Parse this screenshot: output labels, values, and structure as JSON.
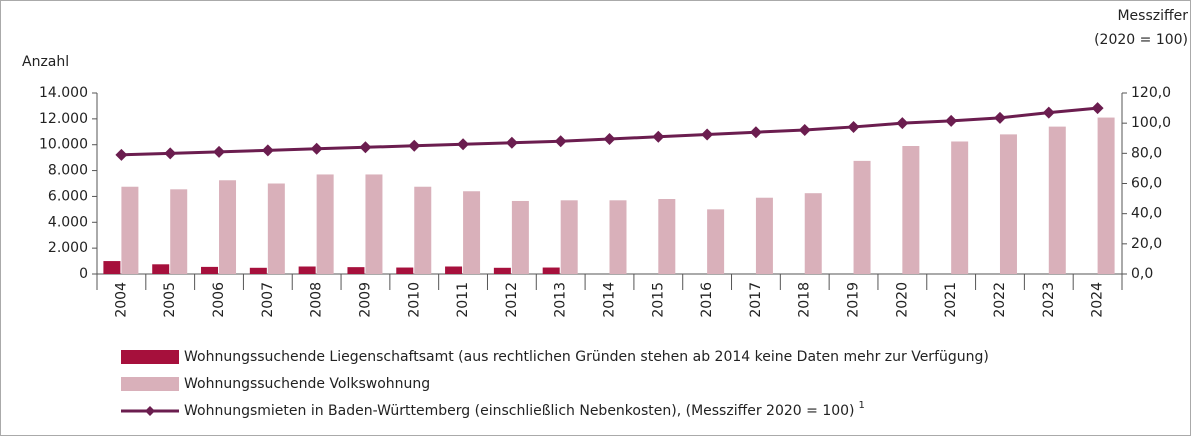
{
  "chart_data": {
    "type": "bar_line",
    "y_label": "Anzahl",
    "y2_label": [
      "Messziffer",
      "(2020 = 100)"
    ],
    "categories": [
      "2004",
      "2005",
      "2006",
      "2007",
      "2008",
      "2009",
      "2010",
      "2011",
      "2012",
      "2013",
      "2014",
      "2015",
      "2016",
      "2017",
      "2018",
      "2019",
      "2020",
      "2021",
      "2022",
      "2023",
      "2024"
    ],
    "series": [
      {
        "name": "Wohnungssuchende Liegenschaftsamt (aus rechtlichen Gründen stehen ab 2014 keine Daten mehr zur Verfügung)",
        "type": "bar",
        "color": "#a6103c",
        "values": [
          1000,
          750,
          550,
          480,
          580,
          530,
          500,
          580,
          480,
          500,
          null,
          null,
          null,
          null,
          null,
          null,
          null,
          null,
          null,
          null,
          null
        ]
      },
      {
        "name": "Wohnungssuchende Volkswohnung",
        "type": "bar",
        "color": "#d9b0ba",
        "values": [
          6750,
          6550,
          7250,
          7000,
          7700,
          7700,
          6750,
          6400,
          5650,
          5700,
          5700,
          5800,
          5000,
          5900,
          6250,
          8750,
          9900,
          10250,
          10800,
          11400,
          12100
        ]
      },
      {
        "name": "Wohnungsmieten in Baden-Württemberg (einschließlich Nebenkosten), (Messziffer 2020 = 100)",
        "footnote_marker": "1",
        "type": "line",
        "axis": "y2",
        "color": "#6b1d4f",
        "values": [
          79,
          80,
          81,
          82,
          83,
          84,
          85,
          86,
          87,
          88,
          89.5,
          91,
          92.5,
          94,
          95.5,
          97.5,
          100,
          101.5,
          103.5,
          107,
          110
        ]
      }
    ],
    "ylim": [
      0,
      14000
    ],
    "yticks": [
      0,
      {
        "value": 2000,
        "label": "2.000"
      },
      {
        "value": 4000,
        "label": "4.000"
      },
      {
        "value": 6000,
        "label": "6.000"
      },
      {
        "value": 8000,
        "label": "8.000"
      },
      {
        "value": 10000,
        "label": "10.000"
      },
      {
        "value": 12000,
        "label": "12.000"
      },
      {
        "value": 14000,
        "label": "14.000"
      }
    ],
    "y2lim": [
      0,
      120
    ],
    "y2ticks": [
      {
        "value": 0,
        "label": "0,0"
      },
      {
        "value": 20,
        "label": "20,0"
      },
      {
        "value": 40,
        "label": "40,0"
      },
      {
        "value": 60,
        "label": "60,0"
      },
      {
        "value": 80,
        "label": "80,0"
      },
      {
        "value": 100,
        "label": "100,0"
      },
      {
        "value": 120,
        "label": "120,0"
      }
    ],
    "grid": false
  }
}
